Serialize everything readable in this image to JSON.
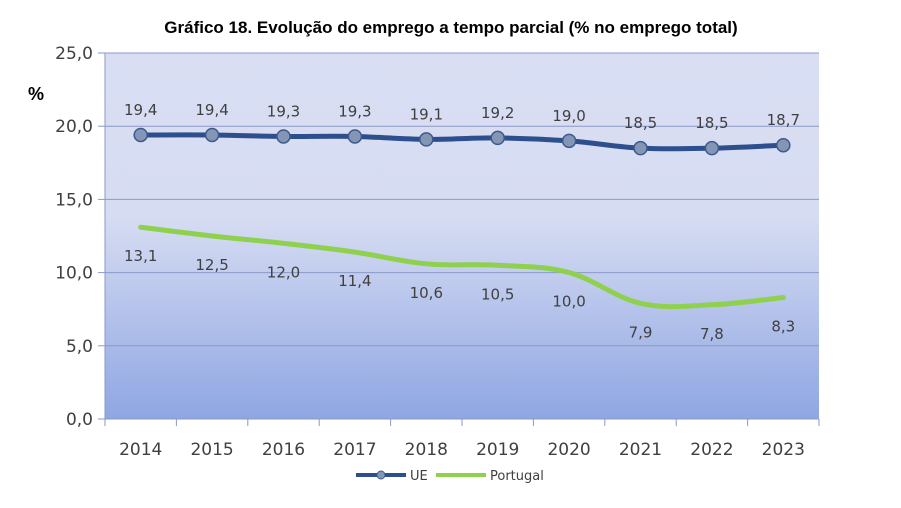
{
  "chart_data": {
    "type": "line",
    "title": "Gráfico 18. Evolução do emprego a tempo parcial (% no emprego total)",
    "ylabel": "%",
    "xlabel": "",
    "x": [
      "2014",
      "2015",
      "2016",
      "2017",
      "2018",
      "2019",
      "2020",
      "2021",
      "2022",
      "2023"
    ],
    "ylim": [
      0,
      25
    ],
    "yticks": [
      "0,0",
      "5,0",
      "10,0",
      "15,0",
      "20,0",
      "25,0"
    ],
    "grid": true,
    "legend_position": "bottom",
    "series": [
      {
        "name": "UE",
        "color": "#2e4f8e",
        "marker": "circle",
        "values": [
          19.4,
          19.4,
          19.3,
          19.3,
          19.1,
          19.2,
          19.0,
          18.5,
          18.5,
          18.7
        ],
        "labels": [
          "19,4",
          "19,4",
          "19,3",
          "19,3",
          "19,1",
          "19,2",
          "19,0",
          "18,5",
          "18,5",
          "18,7"
        ]
      },
      {
        "name": "Portugal",
        "color": "#8fd14f",
        "marker": "none",
        "values": [
          13.1,
          12.5,
          12.0,
          11.4,
          10.6,
          10.5,
          10.0,
          7.9,
          7.8,
          8.3
        ],
        "labels": [
          "13,1",
          "12,5",
          "12,0",
          "11,4",
          "10,6",
          "10,5",
          "10,0",
          "7,9",
          "7,8",
          "8,3"
        ]
      }
    ]
  }
}
